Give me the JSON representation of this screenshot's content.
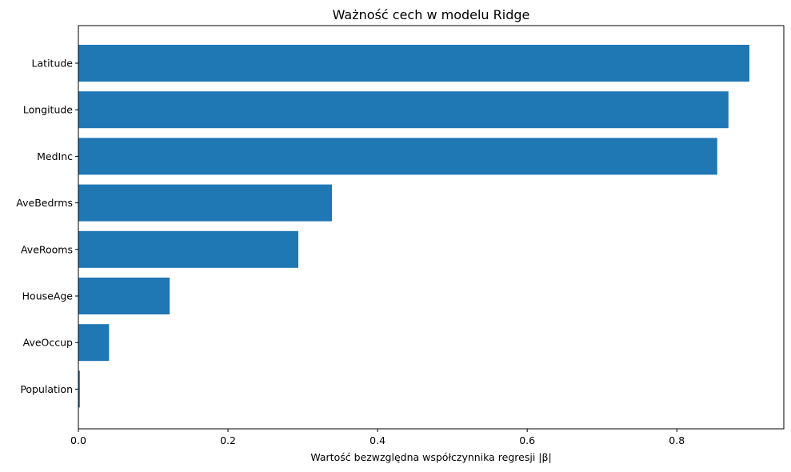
{
  "chart_data": {
    "type": "bar",
    "orientation": "horizontal",
    "title": "Ważność cech w modelu Ridge",
    "xlabel": "Wartość bezwzględna współczynnika regresji |β|",
    "ylabel": "",
    "categories": [
      "Latitude",
      "Longitude",
      "MedInc",
      "AveBedrms",
      "AveRooms",
      "HouseAge",
      "AveOccup",
      "Population"
    ],
    "values": [
      0.897,
      0.869,
      0.854,
      0.339,
      0.294,
      0.122,
      0.041,
      0.002
    ],
    "xlim": [
      0,
      0.943
    ],
    "xticks": [
      0.0,
      0.2,
      0.4,
      0.6,
      0.8
    ],
    "xtick_labels": [
      "0.0",
      "0.2",
      "0.4",
      "0.6",
      "0.8"
    ],
    "bar_color": "#1f77b4",
    "grid": false,
    "legend": "none"
  }
}
